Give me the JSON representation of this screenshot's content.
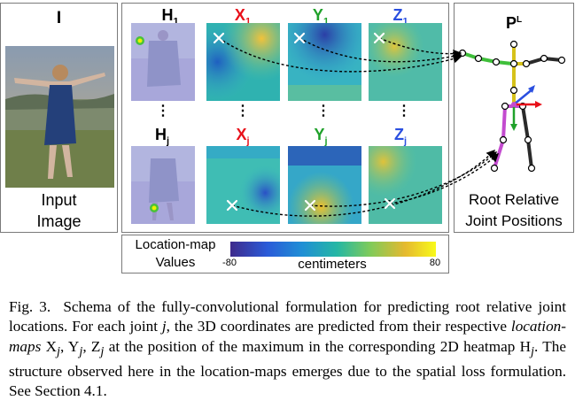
{
  "input_panel": {
    "title": "I",
    "label_line1": "Input",
    "label_line2": "Image"
  },
  "maps_panel": {
    "row1": {
      "h": {
        "base": "H",
        "sub": "1"
      },
      "x": {
        "base": "X",
        "sub": "1"
      },
      "y": {
        "base": "Y",
        "sub": "1"
      },
      "z": {
        "base": "Z",
        "sub": "1"
      }
    },
    "row2": {
      "h": {
        "base": "H",
        "sub": "j"
      },
      "x": {
        "base": "X",
        "sub": "j"
      },
      "y": {
        "base": "Y",
        "sub": "j"
      },
      "z": {
        "base": "Z",
        "sub": "j"
      }
    },
    "ellipsis": "⋮"
  },
  "pose_panel": {
    "title_base": "P",
    "title_sup": "L",
    "label_line1": "Root Relative",
    "label_line2": "Joint Positions"
  },
  "legend": {
    "label_line1": "Location-map",
    "label_line2": "Values",
    "min": "-80",
    "max": "80",
    "unit": "centimeters"
  },
  "colors": {
    "x_label": "#e8101a",
    "y_label": "#1fa12a",
    "z_label": "#2a4fe0",
    "panel_border": "#7a7a7a"
  },
  "caption": {
    "fig": "Fig. 3.",
    "s1": "Schema of the fully-convolutional formulation for predicting root relative joint locations. For each joint ",
    "j1": "j",
    "s2": ", the 3D coordinates are predicted from their respective ",
    "lm": "location-maps",
    "s3": " X",
    "sj1": "j",
    "s4": ", Y",
    "sj2": "j",
    "s5": ", Z",
    "sj3": "j",
    "s6": " at the position of the maximum in the corresponding 2D heatmap H",
    "sj4": "j",
    "s7": ". The structure observed here in the location-maps emerges due to the spatial loss formulation. See Section 4.1."
  }
}
